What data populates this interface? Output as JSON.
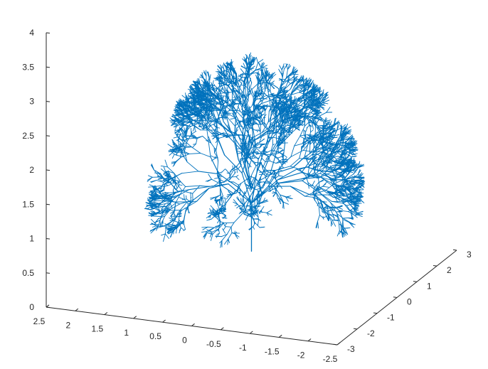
{
  "chart_data": {
    "type": "line",
    "title": "",
    "xlabel": "",
    "ylabel": "",
    "zlabel": "",
    "grid": false,
    "legend": "none",
    "series_color": "#0072BD",
    "axis_color": "#262626",
    "x_axis": {
      "lim": [
        -2.5,
        2.5
      ],
      "ticks": [
        2.5,
        2,
        1.5,
        1,
        0.5,
        0,
        -0.5,
        -1,
        -1.5,
        -2,
        -2.5
      ],
      "labels": [
        "2.5",
        "2",
        "1.5",
        "1",
        "0.5",
        "0",
        "-0.5",
        "-1",
        "-1.5",
        "-2",
        "-2.5"
      ]
    },
    "y_axis": {
      "lim": [
        -3,
        3
      ],
      "ticks": [
        -3,
        -2,
        -1,
        0,
        1,
        2,
        3
      ],
      "labels": [
        "-3",
        "-2",
        "-1",
        "0",
        "1",
        "2",
        "3"
      ]
    },
    "z_axis": {
      "lim": [
        0,
        4
      ],
      "ticks": [
        0,
        0.5,
        1,
        1.5,
        2,
        2.5,
        3,
        3.5,
        4
      ],
      "labels": [
        "0",
        "0.5",
        "1",
        "1.5",
        "2",
        "2.5",
        "3",
        "3.5",
        "4"
      ]
    },
    "trunk": {
      "x": 0,
      "y": 0,
      "z_start": 0.4,
      "z_end": 1.1
    },
    "canopy": {
      "shape": "torus",
      "center_z": 2.3,
      "major_radius": 1.9,
      "minor_radius": 1.4,
      "gap_note": "open front gap"
    }
  }
}
